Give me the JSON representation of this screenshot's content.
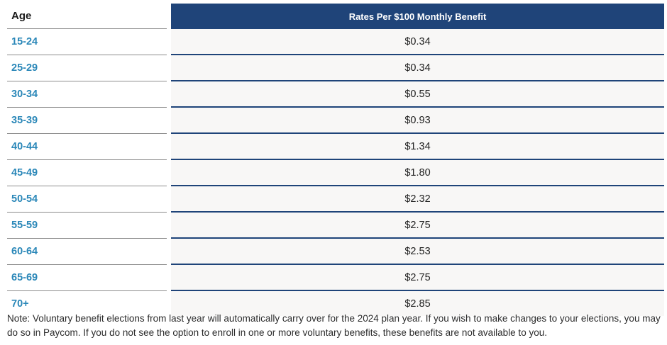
{
  "table": {
    "headers": {
      "age": "Age",
      "rate": "Rates Per $100 Monthly Benefit"
    },
    "rows": [
      {
        "age": "15-24",
        "rate": "$0.34"
      },
      {
        "age": "25-29",
        "rate": "$0.34"
      },
      {
        "age": "30-34",
        "rate": "$0.55"
      },
      {
        "age": "35-39",
        "rate": "$0.93"
      },
      {
        "age": "40-44",
        "rate": "$1.34"
      },
      {
        "age": "45-49",
        "rate": "$1.80"
      },
      {
        "age": "50-54",
        "rate": "$2.32"
      },
      {
        "age": "55-59",
        "rate": "$2.75"
      },
      {
        "age": "60-64",
        "rate": "$2.53"
      },
      {
        "age": "65-69",
        "rate": "$2.75"
      },
      {
        "age": "70+",
        "rate": "$2.85"
      }
    ]
  },
  "note": "Note: Voluntary benefit elections from last year will automatically carry over for the 2024 plan year. If you wish to make changes to your elections, you may do so in Paycom. If you do not see the option to enroll in one or more voluntary benefits, these benefits are not available to you.",
  "colors": {
    "header_background": "#1f4479",
    "age_text": "#2a87b8",
    "rate_cell_background": "#f8f7f6"
  }
}
